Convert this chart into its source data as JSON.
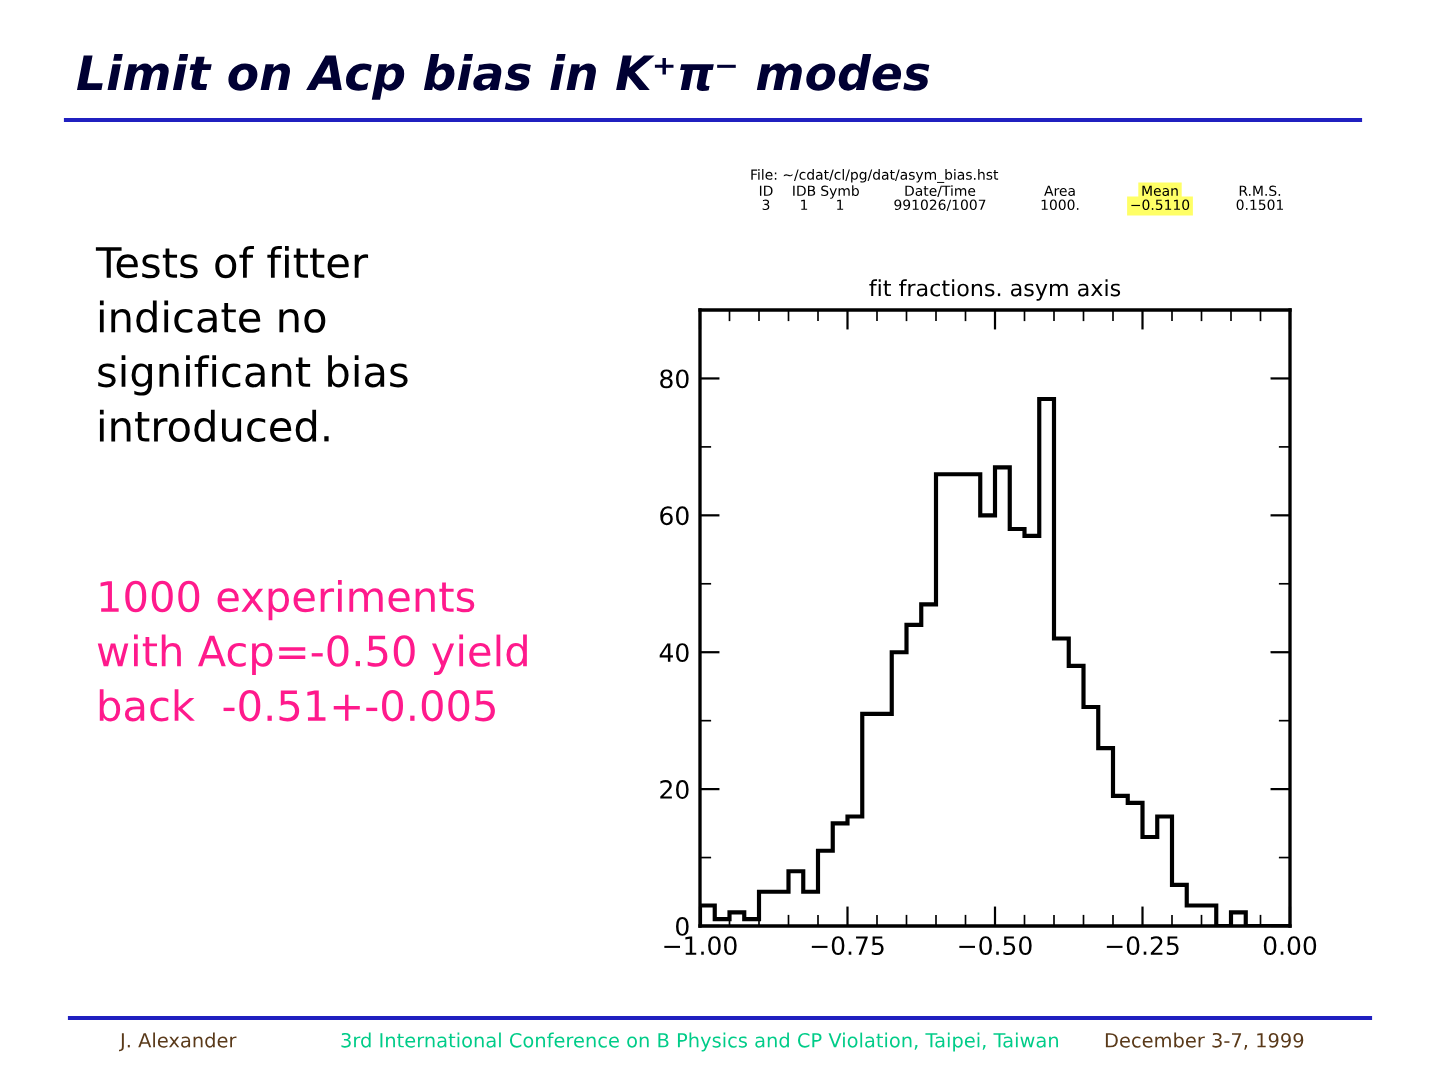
{
  "chart_data": {
    "type": "histogram",
    "title": "fit fractions. asym axis",
    "bins": [
      -1.0,
      -0.975,
      -0.95,
      -0.925,
      -0.9,
      -0.875,
      -0.85,
      -0.825,
      -0.8,
      -0.775,
      -0.75,
      -0.725,
      -0.7,
      -0.675,
      -0.65,
      -0.625,
      -0.6,
      -0.575,
      -0.55,
      -0.525,
      -0.5,
      -0.475,
      -0.45,
      -0.425,
      -0.4,
      -0.375,
      -0.35,
      -0.325,
      -0.3,
      -0.275,
      -0.25,
      -0.225,
      -0.2,
      -0.175,
      -0.15,
      -0.125,
      -0.1,
      -0.075,
      -0.05,
      -0.025,
      0.0
    ],
    "values": [
      3,
      1,
      2,
      1,
      5,
      5,
      8,
      5,
      11,
      15,
      16,
      31,
      31,
      40,
      44,
      47,
      66,
      66,
      66,
      60,
      67,
      58,
      57,
      77,
      42,
      38,
      32,
      26,
      19,
      18,
      13,
      16,
      6,
      3,
      3,
      0,
      2,
      0,
      0,
      0
    ],
    "color": "#000000",
    "xlim": [
      -1.0,
      0.0
    ],
    "xticks": [
      {
        "value": -1.0,
        "label": "−1.00"
      },
      {
        "value": -0.95,
        "label": null
      },
      {
        "value": -0.9,
        "label": null
      },
      {
        "value": -0.85,
        "label": null
      },
      {
        "value": -0.8,
        "label": null
      },
      {
        "value": -0.75,
        "label": "−0.75"
      },
      {
        "value": -0.7,
        "label": null
      },
      {
        "value": -0.65,
        "label": null
      },
      {
        "value": -0.6,
        "label": null
      },
      {
        "value": -0.55,
        "label": null
      },
      {
        "value": -0.5,
        "label": "−0.50"
      },
      {
        "value": -0.45,
        "label": null
      },
      {
        "value": -0.4,
        "label": null
      },
      {
        "value": -0.35,
        "label": null
      },
      {
        "value": -0.3,
        "label": null
      },
      {
        "value": -0.25,
        "label": "−0.25"
      },
      {
        "value": -0.2,
        "label": null
      },
      {
        "value": -0.15,
        "label": null
      },
      {
        "value": -0.1,
        "label": null
      },
      {
        "value": -0.05,
        "label": null
      },
      {
        "value": 0.0,
        "label": "0.00"
      }
    ],
    "ylim": [
      0,
      90
    ],
    "yticks": [
      0,
      {
        "value": 10,
        "label": null
      },
      20,
      {
        "value": 30,
        "label": null
      },
      40,
      {
        "value": 50,
        "label": null
      },
      60,
      {
        "value": 70,
        "label": null
      },
      80
    ],
    "grid": false,
    "annotations": [
      "Limit on Acp bias in K⁺π⁻ modes",
      "Tests of fitter\nindicate no\nsignificant bias\nintroduced.",
      "1000 experiments\nwith Acp=-0.50 yield\nback  -0.51+-0.005",
      "File: ~/cdat/cl/pg/dat/asym_bias.hst",
      "ID",
      "IDB",
      "Symb",
      "Date/Time",
      "Area",
      "Mean",
      "R.M.S.",
      "3",
      "1",
      "1",
      "991026/1007",
      "1000.",
      "−0.5110",
      "0.1501",
      "J. Alexander",
      "3rd International Conference on B Physics and CP Violation, Taipei, Taiwan",
      "December 3-7, 1999"
    ]
  }
}
